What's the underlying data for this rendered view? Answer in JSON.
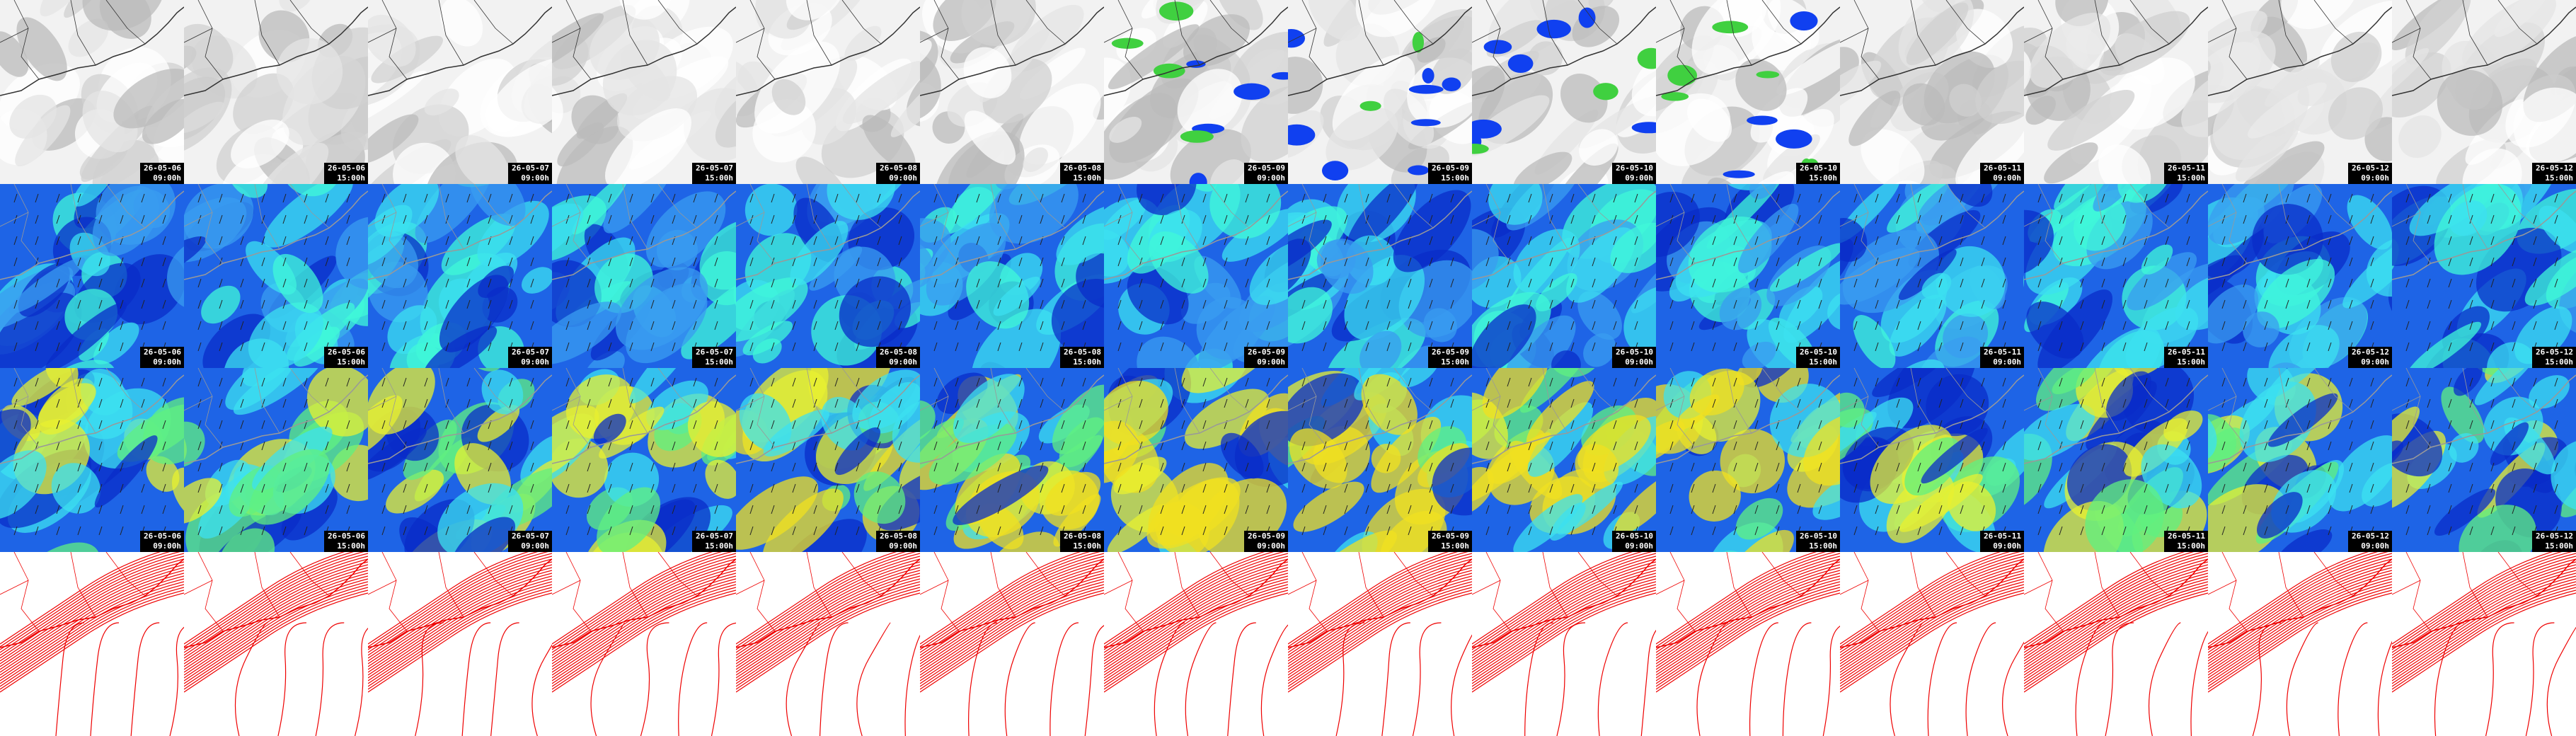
{
  "columns": [
    {
      "date": "26-05-06",
      "time": "09:00h"
    },
    {
      "date": "26-05-06",
      "time": "15:00h"
    },
    {
      "date": "26-05-07",
      "time": "09:00h"
    },
    {
      "date": "26-05-07",
      "time": "15:00h"
    },
    {
      "date": "26-05-08",
      "time": "09:00h"
    },
    {
      "date": "26-05-08",
      "time": "15:00h"
    },
    {
      "date": "26-05-09",
      "time": "09:00h"
    },
    {
      "date": "26-05-09",
      "time": "15:00h"
    },
    {
      "date": "26-05-10",
      "time": "09:00h"
    },
    {
      "date": "26-05-10",
      "time": "15:00h"
    },
    {
      "date": "26-05-11",
      "time": "09:00h"
    },
    {
      "date": "26-05-11",
      "time": "15:00h"
    },
    {
      "date": "26-05-12",
      "time": "09:00h"
    },
    {
      "date": "26-05-12",
      "time": "15:00h"
    }
  ]
}
